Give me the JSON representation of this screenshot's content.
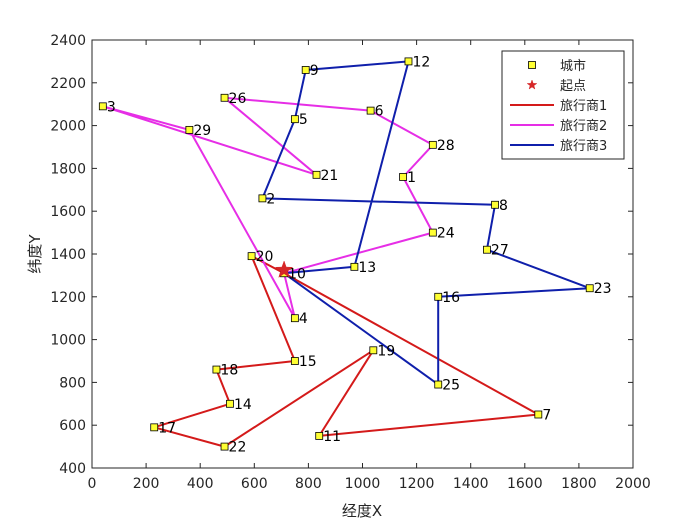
{
  "chart_data": {
    "type": "scatter",
    "xlabel": "经度X",
    "ylabel": "纬度Y",
    "xlim": [
      0,
      2000
    ],
    "ylim": [
      400,
      2400
    ],
    "xticks": [
      "0",
      "200",
      "400",
      "600",
      "800",
      "1000",
      "1200",
      "1400",
      "1600",
      "1800",
      "2000"
    ],
    "yticks": [
      "400",
      "600",
      "800",
      "1000",
      "1200",
      "1400",
      "1600",
      "1800",
      "2000",
      "2200",
      "2400"
    ],
    "legend_position": "top-right",
    "start": {
      "label": "起点",
      "x": 710,
      "y": 1325,
      "color": "#d62728"
    },
    "cities": {
      "label": "城市",
      "color": "#ffff33",
      "points": [
        {
          "id": "1",
          "x": 1150,
          "y": 1760
        },
        {
          "id": "2",
          "x": 630,
          "y": 1660
        },
        {
          "id": "3",
          "x": 40,
          "y": 2090
        },
        {
          "id": "4",
          "x": 750,
          "y": 1100
        },
        {
          "id": "5",
          "x": 750,
          "y": 2030
        },
        {
          "id": "6",
          "x": 1030,
          "y": 2070
        },
        {
          "id": "7",
          "x": 1650,
          "y": 650
        },
        {
          "id": "8",
          "x": 1490,
          "y": 1630
        },
        {
          "id": "9",
          "x": 790,
          "y": 2260
        },
        {
          "id": "10",
          "x": 710,
          "y": 1310
        },
        {
          "id": "11",
          "x": 840,
          "y": 550
        },
        {
          "id": "12",
          "x": 1170,
          "y": 2300
        },
        {
          "id": "13",
          "x": 970,
          "y": 1340
        },
        {
          "id": "14",
          "x": 510,
          "y": 700
        },
        {
          "id": "15",
          "x": 750,
          "y": 900
        },
        {
          "id": "16",
          "x": 1280,
          "y": 1200
        },
        {
          "id": "17",
          "x": 230,
          "y": 590
        },
        {
          "id": "18",
          "x": 460,
          "y": 860
        },
        {
          "id": "19",
          "x": 1040,
          "y": 950
        },
        {
          "id": "20",
          "x": 590,
          "y": 1390
        },
        {
          "id": "21",
          "x": 830,
          "y": 1770
        },
        {
          "id": "22",
          "x": 490,
          "y": 500
        },
        {
          "id": "23",
          "x": 1840,
          "y": 1240
        },
        {
          "id": "24",
          "x": 1260,
          "y": 1500
        },
        {
          "id": "25",
          "x": 1280,
          "y": 790
        },
        {
          "id": "26",
          "x": 490,
          "y": 2130
        },
        {
          "id": "27",
          "x": 1460,
          "y": 1420
        },
        {
          "id": "28",
          "x": 1260,
          "y": 1910
        },
        {
          "id": "29",
          "x": 360,
          "y": 1980
        }
      ]
    },
    "series": [
      {
        "name": "旅行商1",
        "color": "#d41a1a",
        "route": [
          "10",
          "7",
          "11",
          "19",
          "22",
          "17",
          "14",
          "18",
          "15",
          "20",
          "10"
        ]
      },
      {
        "name": "旅行商2",
        "color": "#e62ee6",
        "route": [
          "10",
          "24",
          "1",
          "28",
          "6",
          "26",
          "21",
          "3",
          "29",
          "4",
          "10"
        ]
      },
      {
        "name": "旅行商3",
        "color": "#0f1fab",
        "route": [
          "10",
          "25",
          "16",
          "23",
          "27",
          "8",
          "2",
          "5",
          "9",
          "12",
          "13",
          "10"
        ]
      }
    ]
  }
}
